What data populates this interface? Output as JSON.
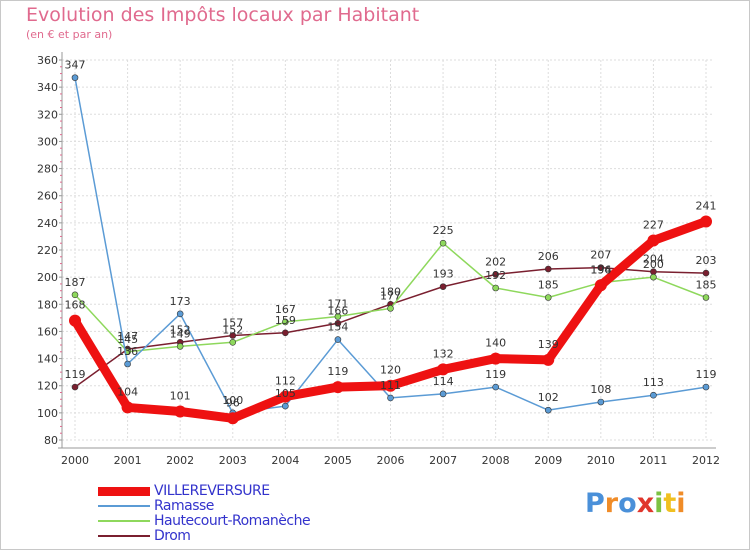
{
  "title": "Evolution des Impôts locaux par Habitant",
  "subtitle": "(en € et par an)",
  "logo": {
    "text": "Proxiti",
    "colors": [
      "#4a90d9",
      "#f08c28",
      "#4a90d9",
      "#e0362c",
      "#7cc242",
      "#f0c020",
      "#f08c28"
    ]
  },
  "chart_data": {
    "type": "line",
    "title": "Evolution des Impôts locaux par Habitant",
    "subtitle": "(en € et par an)",
    "xlabel": "",
    "ylabel": "",
    "ylim": [
      80,
      360
    ],
    "yticks": [
      80,
      100,
      120,
      140,
      160,
      180,
      200,
      220,
      240,
      260,
      280,
      300,
      320,
      340,
      360
    ],
    "categories": [
      "2000",
      "2001",
      "2002",
      "2003",
      "2004",
      "2005",
      "2006",
      "2007",
      "2008",
      "2009",
      "2010",
      "2011",
      "2012"
    ],
    "grid": true,
    "legend_position": "bottom-left",
    "series": [
      {
        "name": "Drom",
        "color": "#7a1f2f",
        "values": [
          119,
          147,
          152,
          157,
          159,
          166,
          180,
          193,
          202,
          206,
          207,
          204,
          203
        ],
        "labels": [
          "119",
          "147",
          "152",
          "157",
          "159",
          "166",
          "180",
          "193",
          "202",
          "206",
          "207",
          "204",
          "203"
        ]
      },
      {
        "name": "Hautecourt-Romanèche",
        "color": "#8ed85c",
        "values": [
          187,
          145,
          149,
          152,
          167,
          171,
          177,
          225,
          192,
          185,
          196,
          200,
          185
        ],
        "labels": [
          "187",
          "145",
          "149",
          "152",
          "167",
          "171",
          "177",
          "225",
          "192",
          "185",
          "196",
          "200",
          "185"
        ]
      },
      {
        "name": "Ramasse",
        "color": "#5b9bd5",
        "values": [
          347,
          136,
          173,
          100,
          105,
          154,
          111,
          114,
          119,
          102,
          108,
          113,
          119
        ],
        "labels": [
          "347",
          "136",
          "173",
          "100",
          "105",
          "154",
          "111",
          "114",
          "119",
          "102",
          "108",
          "113",
          "119"
        ]
      },
      {
        "name": "VILLEREVERSURE",
        "color": "#ee1111",
        "values": [
          168,
          104,
          101,
          96,
          112,
          119,
          120,
          132,
          140,
          139,
          194,
          227,
          241
        ],
        "labels": [
          "168",
          "104",
          "101",
          "96",
          "112",
          "119",
          "120",
          "132",
          "140",
          "139",
          "194",
          "227",
          "241"
        ]
      }
    ]
  },
  "legend": [
    {
      "label": "VILLEREVERSURE",
      "color": "#ee1111",
      "thickness": 9
    },
    {
      "label": "Ramasse",
      "color": "#5b9bd5",
      "thickness": 2
    },
    {
      "label": "Hautecourt-Romanèche",
      "color": "#8ed85c",
      "thickness": 2
    },
    {
      "label": "Drom",
      "color": "#7a1f2f",
      "thickness": 2
    }
  ]
}
